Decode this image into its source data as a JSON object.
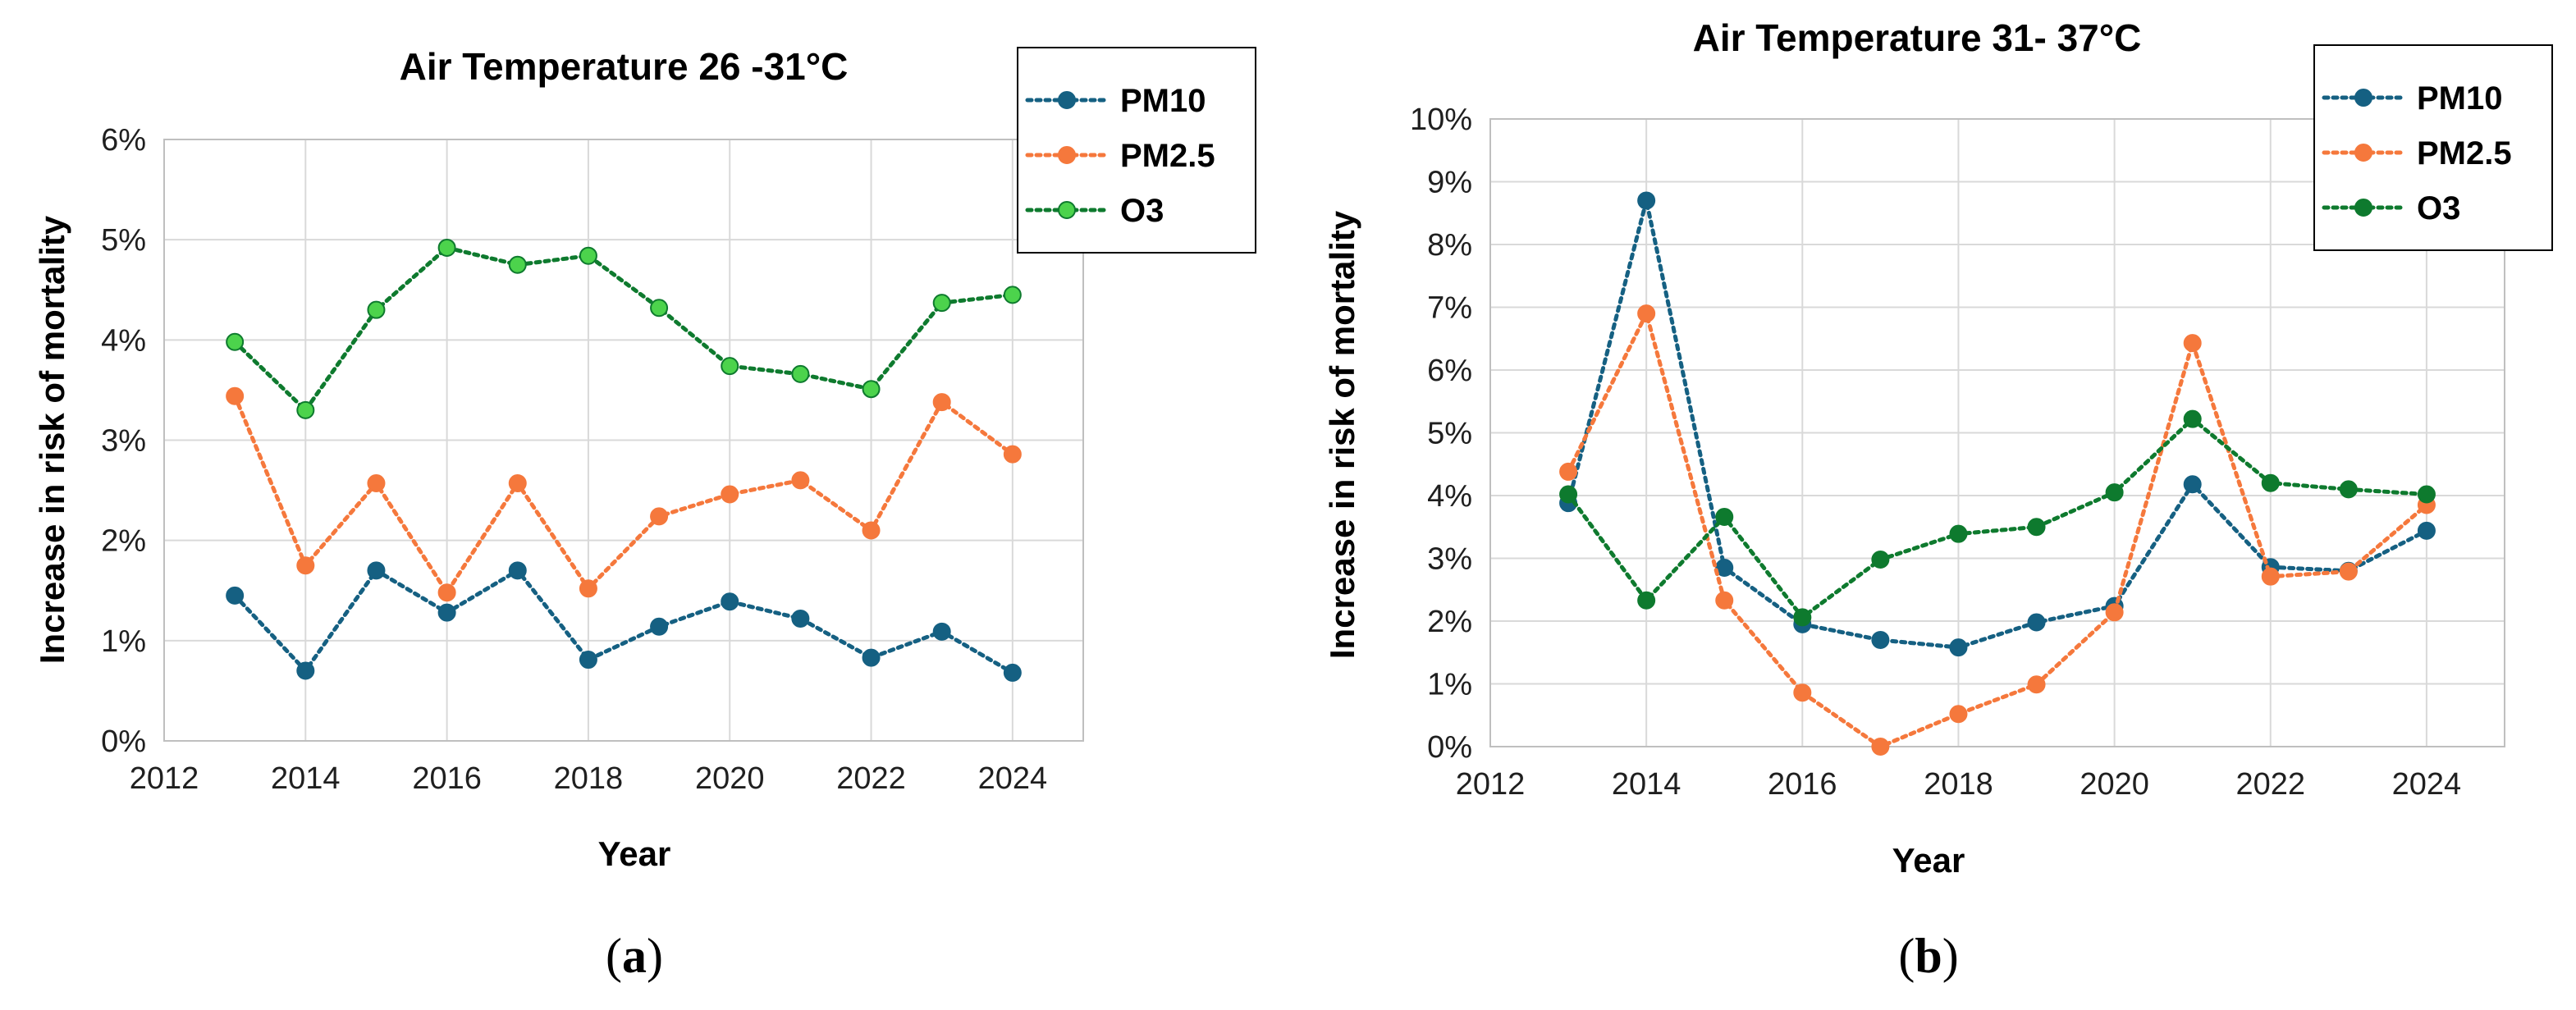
{
  "colors": {
    "PM10": "#156082",
    "PM2.5": "#F5783C",
    "O3_a": "#4CD34C",
    "O3_b": "#0E7A2E",
    "O3_line": "#0E7A2E",
    "grid": "#D9D9D9",
    "plot_border": "#BFBFBF"
  },
  "chart_data": [
    {
      "type": "line",
      "panel_label": "a",
      "title": "Air Temperature  26 -31°C",
      "xlabel": "Year",
      "ylabel": "Increase in risk of mortality",
      "xlim": [
        2012,
        2025
      ],
      "xticks": [
        2012,
        2014,
        2016,
        2018,
        2020,
        2022,
        2024
      ],
      "xtick_labels": [
        "2012",
        "2014",
        "2016",
        "2018",
        "2020",
        "2022",
        "2024"
      ],
      "ylim": [
        0,
        6
      ],
      "yticks": [
        0,
        1,
        2,
        3,
        4,
        5,
        6
      ],
      "ytick_labels": [
        "0%",
        "1%",
        "2%",
        "3%",
        "4%",
        "5%",
        "6%"
      ],
      "grid": true,
      "legend_position": "top-right",
      "x": [
        2013,
        2014,
        2015,
        2016,
        2017,
        2018,
        2019,
        2020,
        2021,
        2022,
        2023,
        2024
      ],
      "series": [
        {
          "name": "PM10",
          "color_key": "PM10",
          "line_color_key": "PM10",
          "values": [
            1.45,
            0.7,
            1.7,
            1.28,
            1.7,
            0.81,
            1.14,
            1.39,
            1.22,
            0.83,
            1.09,
            0.68
          ]
        },
        {
          "name": "PM2.5",
          "color_key": "PM2.5",
          "line_color_key": "PM2.5",
          "values": [
            3.44,
            1.75,
            2.57,
            1.48,
            2.57,
            1.52,
            2.24,
            2.46,
            2.6,
            2.1,
            3.38,
            2.86
          ]
        },
        {
          "name": "O3",
          "color_key": "O3_a",
          "line_color_key": "O3_line",
          "values": [
            3.98,
            3.3,
            4.3,
            4.92,
            4.75,
            4.84,
            4.32,
            3.74,
            3.66,
            3.51,
            4.37,
            4.45
          ]
        }
      ]
    },
    {
      "type": "line",
      "panel_label": "b",
      "title": "Air Temperature 31- 37°C",
      "xlabel": "Year",
      "ylabel": "Increase in risk of mortality",
      "xlim": [
        2012,
        2025
      ],
      "xticks": [
        2012,
        2014,
        2016,
        2018,
        2020,
        2022,
        2024
      ],
      "xtick_labels": [
        "2012",
        "2014",
        "2016",
        "2018",
        "2020",
        "2022",
        "2024"
      ],
      "ylim": [
        0,
        10
      ],
      "yticks": [
        0,
        1,
        2,
        3,
        4,
        5,
        6,
        7,
        8,
        9,
        10
      ],
      "ytick_labels": [
        "0%",
        "1%",
        "2%",
        "3%",
        "4%",
        "5%",
        "6%",
        "7%",
        "8%",
        "9%",
        "10%"
      ],
      "grid": true,
      "legend_position": "top-right",
      "x": [
        2013,
        2014,
        2015,
        2016,
        2017,
        2018,
        2019,
        2020,
        2021,
        2022,
        2023,
        2024
      ],
      "series": [
        {
          "name": "PM10",
          "color_key": "PM10",
          "line_color_key": "PM10",
          "values": [
            3.88,
            8.7,
            2.85,
            1.95,
            1.7,
            1.58,
            1.98,
            2.24,
            4.18,
            2.86,
            2.8,
            3.44
          ]
        },
        {
          "name": "PM2.5",
          "color_key": "PM2.5",
          "line_color_key": "PM2.5",
          "values": [
            4.38,
            6.9,
            2.33,
            0.86,
            0.0,
            0.52,
            0.99,
            2.14,
            6.43,
            2.71,
            2.79,
            3.85
          ]
        },
        {
          "name": "O3",
          "color_key": "O3_b",
          "line_color_key": "O3_b",
          "values": [
            4.02,
            2.33,
            3.66,
            2.06,
            2.98,
            3.39,
            3.5,
            4.05,
            5.22,
            4.2,
            4.1,
            4.02
          ]
        }
      ]
    }
  ]
}
